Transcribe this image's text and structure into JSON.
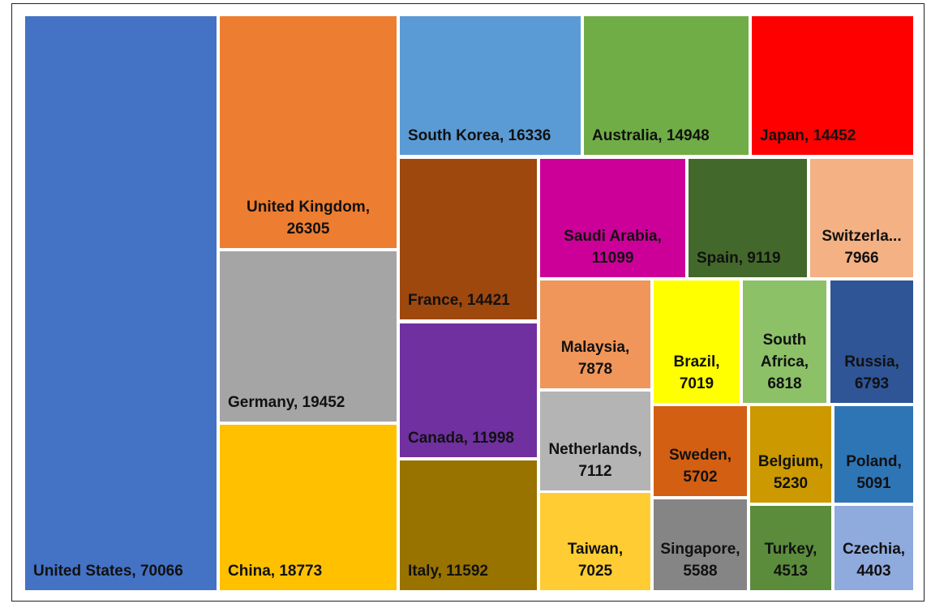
{
  "chart_data": {
    "type": "treemap",
    "title": "",
    "series": [
      {
        "name": "United States",
        "value": 70066,
        "label": "United States, 70066",
        "color": "#4472C4"
      },
      {
        "name": "United Kingdom",
        "value": 26305,
        "label": "United Kingdom,\n26305",
        "color": "#ED7D31"
      },
      {
        "name": "Germany",
        "value": 19452,
        "label": "Germany, 19452",
        "color": "#A5A5A5"
      },
      {
        "name": "China",
        "value": 18773,
        "label": "China, 18773",
        "color": "#FFC000"
      },
      {
        "name": "South Korea",
        "value": 16336,
        "label": "South Korea, 16336",
        "color": "#5B9BD5"
      },
      {
        "name": "Australia",
        "value": 14948,
        "label": "Australia, 14948",
        "color": "#70AD47"
      },
      {
        "name": "Japan",
        "value": 14452,
        "label": "Japan, 14452",
        "color": "#FF0000"
      },
      {
        "name": "France",
        "value": 14421,
        "label": "France, 14421",
        "color": "#9E480E"
      },
      {
        "name": "Canada",
        "value": 11998,
        "label": "Canada, 11998",
        "color": "#7030A0"
      },
      {
        "name": "Italy",
        "value": 11592,
        "label": "Italy, 11592",
        "color": "#997300"
      },
      {
        "name": "Saudi Arabia",
        "value": 11099,
        "label": "Saudi Arabia,\n11099",
        "color": "#CC0099"
      },
      {
        "name": "Spain",
        "value": 9119,
        "label": "Spain, 9119",
        "color": "#43682B"
      },
      {
        "name": "Switzerland",
        "value": 7966,
        "label": "Switzerla...\n7966",
        "color": "#F4B183"
      },
      {
        "name": "Malaysia",
        "value": 7878,
        "label": "Malaysia,\n7878",
        "color": "#F0965A"
      },
      {
        "name": "Brazil",
        "value": 7019,
        "label": "Brazil,\n7019",
        "color": "#FFFF00"
      },
      {
        "name": "South Africa",
        "value": 6818,
        "label": "South\nAfrica,\n6818",
        "color": "#8CC168"
      },
      {
        "name": "Russia",
        "value": 6793,
        "label": "Russia,\n6793",
        "color": "#2F5597"
      },
      {
        "name": "Netherlands",
        "value": 7112,
        "label": "Netherlands,\n7112",
        "color": "#B4B4B4"
      },
      {
        "name": "Taiwan",
        "value": 7025,
        "label": "Taiwan,\n7025",
        "color": "#FFCD33"
      },
      {
        "name": "Sweden",
        "value": 5702,
        "label": "Sweden,\n5702",
        "color": "#D35F13"
      },
      {
        "name": "Belgium",
        "value": 5230,
        "label": "Belgium,\n5230",
        "color": "#CC9900"
      },
      {
        "name": "Poland",
        "value": 5091,
        "label": "Poland,\n5091",
        "color": "#2E75B6"
      },
      {
        "name": "Singapore",
        "value": 5588,
        "label": "Singapore,\n5588",
        "color": "#858585"
      },
      {
        "name": "Turkey",
        "value": 4513,
        "label": "Turkey,\n4513",
        "color": "#5A8C3C"
      },
      {
        "name": "Czechia",
        "value": 4403,
        "label": "Czechia,\n4403",
        "color": "#8FAADC"
      }
    ]
  }
}
